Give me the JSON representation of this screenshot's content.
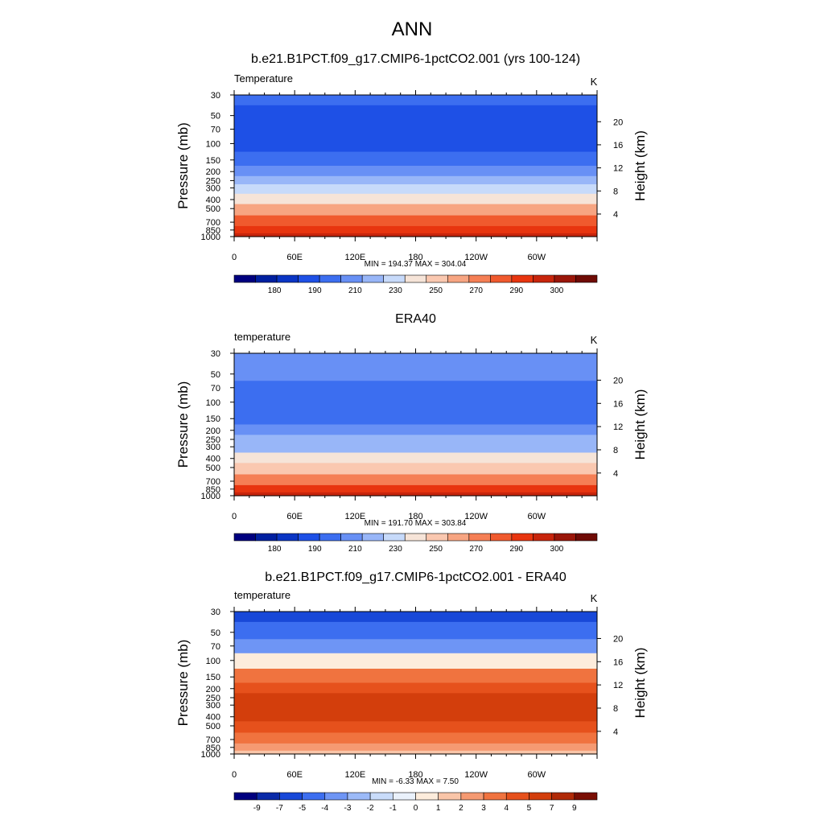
{
  "page_title": "ANN",
  "chart_data": [
    {
      "type": "heatmap",
      "title": "b.e21.B1PCT.f09_g17.CMIP6-1pctCO2.001 (yrs 100-124)",
      "left_label": "Temperature",
      "units": "K",
      "ylabel": "Pressure (mb)",
      "ylabel_right": "Height (km)",
      "x_ticks": [
        "0",
        "60E",
        "120E",
        "180",
        "120W",
        "60W"
      ],
      "y_ticks": [
        "30",
        "50",
        "70",
        "100",
        "150",
        "200",
        "250",
        "300",
        "400",
        "500",
        "700",
        "850",
        "1000"
      ],
      "height_ticks": [
        "20",
        "16",
        "12",
        "8",
        "4"
      ],
      "stats": "MIN = 194.37  MAX = 304.04",
      "min": 194.37,
      "max": 304.04,
      "colorbar_labels": [
        "180",
        "190",
        "210",
        "230",
        "250",
        "270",
        "290",
        "300"
      ],
      "level_temperatures_K": [
        214,
        206,
        204,
        205,
        212,
        219,
        226,
        232,
        246,
        256,
        272,
        280,
        288
      ]
    },
    {
      "type": "heatmap",
      "title": "ERA40",
      "left_label": "temperature",
      "units": "K",
      "ylabel": "Pressure (mb)",
      "ylabel_right": "Height (km)",
      "x_ticks": [
        "0",
        "60E",
        "120E",
        "180",
        "120W",
        "60W"
      ],
      "y_ticks": [
        "30",
        "50",
        "70",
        "100",
        "150",
        "200",
        "250",
        "300",
        "400",
        "500",
        "700",
        "850",
        "1000"
      ],
      "height_ticks": [
        "20",
        "16",
        "12",
        "8",
        "4"
      ],
      "stats": "MIN = 191.70  MAX = 303.84",
      "min": 191.7,
      "max": 303.84,
      "colorbar_labels": [
        "180",
        "190",
        "210",
        "230",
        "250",
        "270",
        "290",
        "300"
      ],
      "level_temperatures_K": [
        222,
        215,
        210,
        207,
        211,
        218,
        225,
        230,
        244,
        254,
        270,
        279,
        287
      ]
    },
    {
      "type": "heatmap",
      "title": "b.e21.B1PCT.f09_g17.CMIP6-1pctCO2.001 - ERA40",
      "left_label": "temperature",
      "units": "K",
      "ylabel": "Pressure (mb)",
      "ylabel_right": "Height (km)",
      "x_ticks": [
        "0",
        "60E",
        "120E",
        "180",
        "120W",
        "60W"
      ],
      "y_ticks": [
        "30",
        "50",
        "70",
        "100",
        "150",
        "200",
        "250",
        "300",
        "400",
        "500",
        "700",
        "850",
        "1000"
      ],
      "height_ticks": [
        "20",
        "16",
        "12",
        "8",
        "4"
      ],
      "stats": "MIN =  -6.33  MAX =   7.50",
      "min": -6.33,
      "max": 7.5,
      "colorbar_labels": [
        "-9",
        "-7",
        "-5",
        "-4",
        "-3",
        "-2",
        "-1",
        "0",
        "1",
        "2",
        "3",
        "4",
        "5",
        "7",
        "9"
      ],
      "level_differences_K": [
        -6,
        -4.5,
        -3.5,
        0,
        3,
        4.5,
        5,
        5.5,
        5,
        4,
        3,
        2,
        1.5
      ]
    }
  ]
}
